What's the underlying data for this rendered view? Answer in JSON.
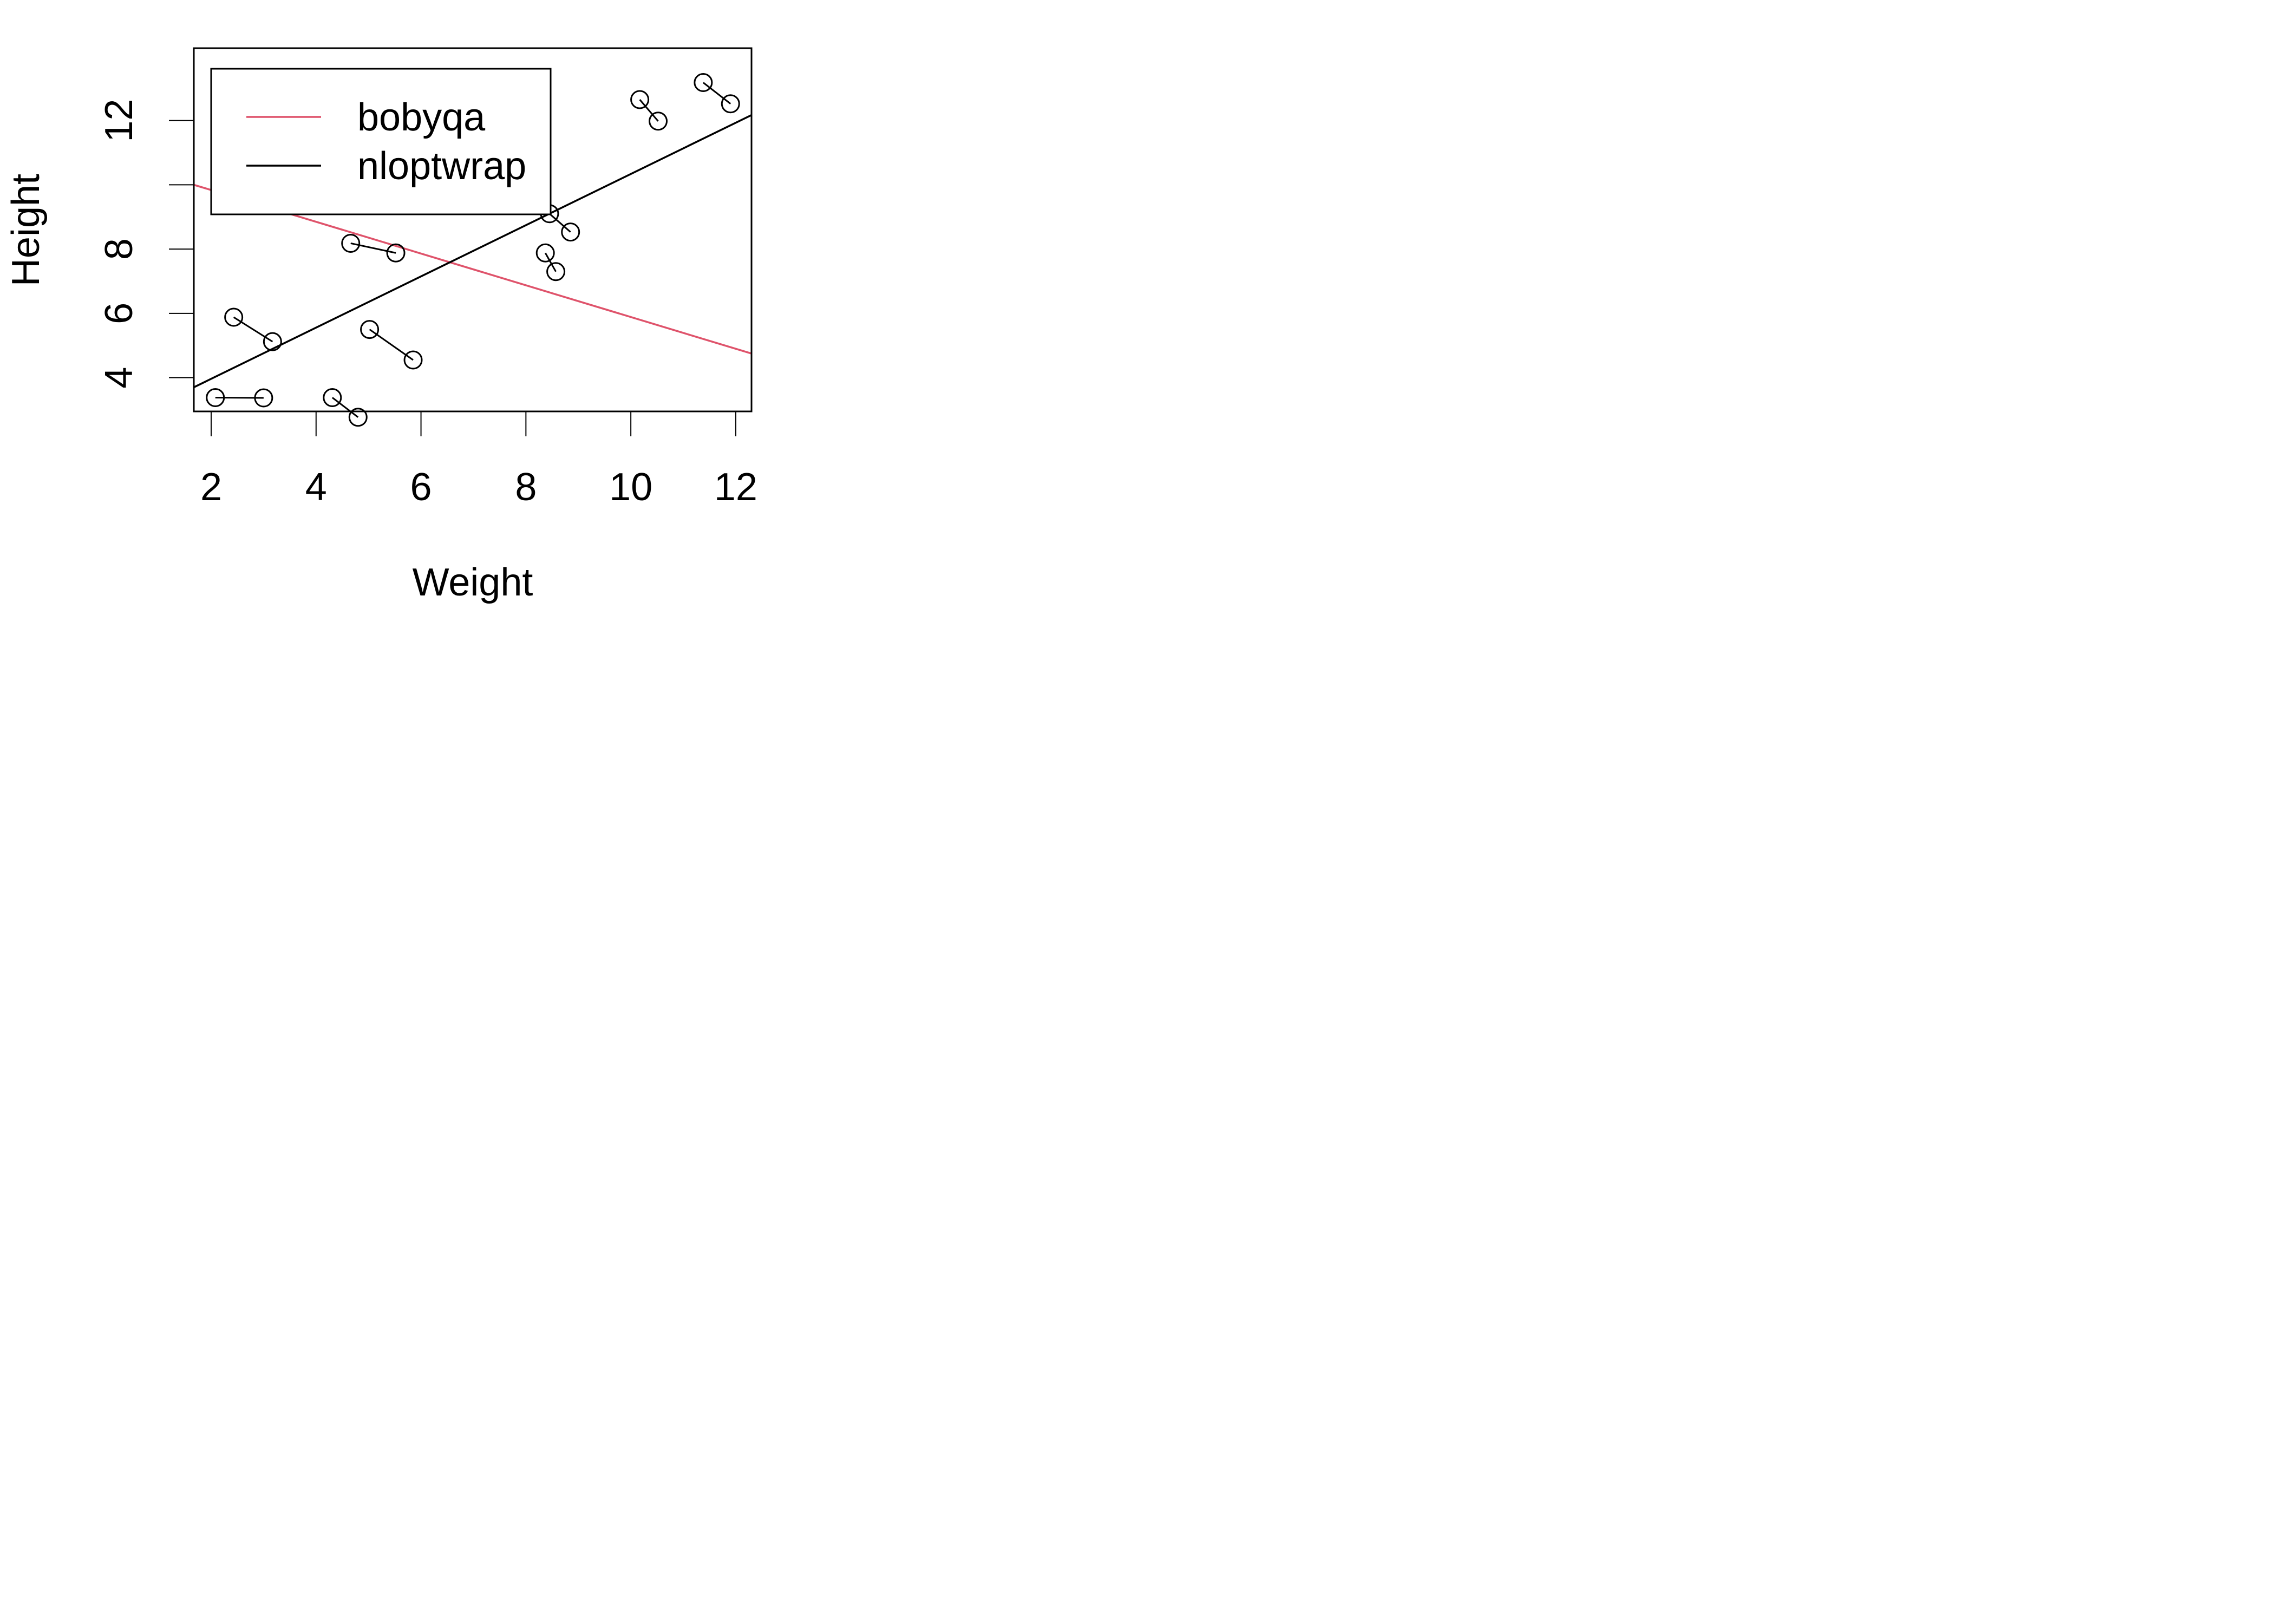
{
  "chart_data": {
    "type": "scatter",
    "xlabel": "Weight",
    "ylabel": "Height",
    "xlim": [
      1.67,
      12.3
    ],
    "ylim": [
      2.95,
      14.25
    ],
    "xticks": [
      2,
      4,
      6,
      8,
      10,
      12
    ],
    "yticks": [
      4,
      6,
      8,
      10,
      12
    ],
    "ytick_labels": [
      "4",
      "6",
      "8",
      "",
      "12"
    ],
    "segments": [
      {
        "x1": 2.08,
        "y1": 3.38,
        "x2": 3.0,
        "y2": 3.37
      },
      {
        "x1": 2.43,
        "y1": 5.88,
        "x2": 3.17,
        "y2": 5.12
      },
      {
        "x1": 4.31,
        "y1": 3.38,
        "x2": 4.8,
        "y2": 2.77
      },
      {
        "x1": 5.02,
        "y1": 5.5,
        "x2": 5.85,
        "y2": 4.55
      },
      {
        "x1": 4.66,
        "y1": 8.18,
        "x2": 5.52,
        "y2": 7.88
      },
      {
        "x1": 8.37,
        "y1": 7.88,
        "x2": 8.57,
        "y2": 7.3
      },
      {
        "x1": 8.45,
        "y1": 9.1,
        "x2": 8.85,
        "y2": 8.53
      },
      {
        "x1": 10.17,
        "y1": 12.65,
        "x2": 10.52,
        "y2": 11.98
      },
      {
        "x1": 11.38,
        "y1": 13.18,
        "x2": 11.9,
        "y2": 12.52
      }
    ],
    "lines": [
      {
        "name": "bobyqa",
        "color": "#DF536B",
        "points": [
          [
            1.67,
            10.0
          ],
          [
            12.3,
            4.75
          ]
        ]
      },
      {
        "name": "nloptwrap",
        "color": "#000000",
        "points": [
          [
            1.67,
            3.7
          ],
          [
            12.3,
            12.17
          ]
        ]
      }
    ],
    "legend": {
      "position": "top-left",
      "items": [
        {
          "label": "bobyqa",
          "color": "#DF536B"
        },
        {
          "label": "nloptwrap",
          "color": "#000000"
        }
      ]
    },
    "grid": false
  }
}
